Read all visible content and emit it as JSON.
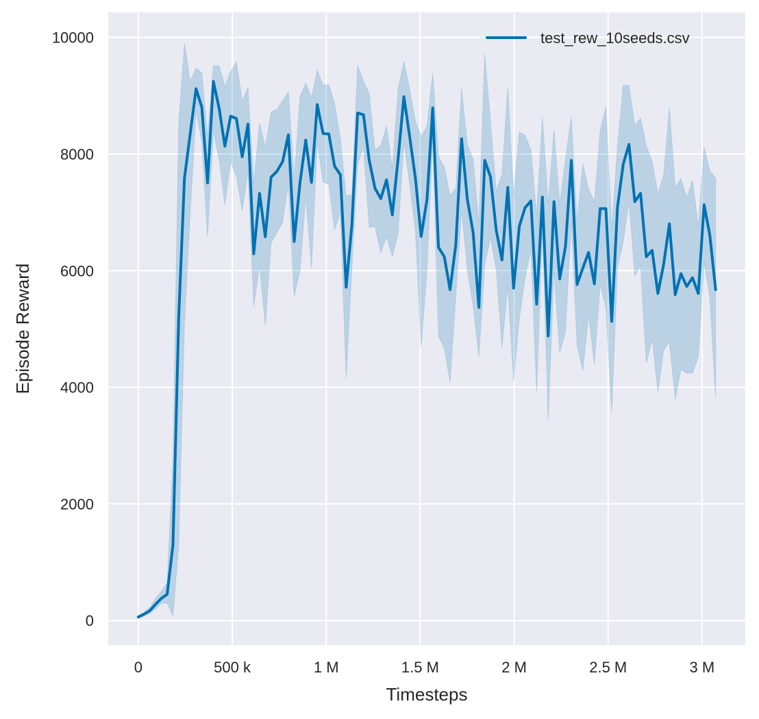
{
  "chart_data": {
    "type": "line",
    "title": "",
    "xlabel": "Timesteps",
    "ylabel": "Episode Reward",
    "xlim": [
      -160000,
      3230000
    ],
    "ylim": [
      -420,
      10430
    ],
    "grid": true,
    "legend": "top-right",
    "background": "#eaeaf2",
    "line_color": "#0072b2",
    "band_color": "#0072b2",
    "xticks": [
      0,
      500000,
      1000000,
      1500000,
      2000000,
      2500000,
      3000000
    ],
    "xtick_labels": [
      "0",
      "500 k",
      "1 M",
      "1.5 M",
      "2 M",
      "2.5 M",
      "3 M"
    ],
    "yticks": [
      0,
      2000,
      4000,
      6000,
      8000,
      10000
    ],
    "ytick_labels": [
      "0",
      "2000",
      "4000",
      "6000",
      "8000",
      "10000"
    ],
    "series": [
      {
        "name": "test_rew_10seeds.csv",
        "x": [
          0,
          30720,
          61440,
          92160,
          122880,
          153600,
          184320,
          215040,
          245760,
          276480,
          307200,
          337920,
          368640,
          399360,
          430080,
          460800,
          491520,
          522240,
          552960,
          583680,
          614400,
          645120,
          675840,
          706560,
          737280,
          768000,
          798720,
          829440,
          860160,
          890880,
          921600,
          952320,
          983040,
          1013760,
          1044480,
          1075200,
          1105920,
          1136640,
          1167360,
          1198080,
          1228800,
          1259520,
          1290240,
          1320960,
          1351680,
          1382400,
          1413120,
          1443840,
          1474560,
          1505280,
          1536000,
          1566720,
          1597440,
          1628160,
          1658880,
          1689600,
          1720320,
          1751040,
          1781760,
          1812480,
          1843200,
          1873920,
          1904640,
          1935360,
          1966080,
          1996800,
          2027520,
          2058240,
          2088960,
          2119680,
          2150400,
          2181120,
          2211840,
          2242560,
          2273280,
          2304000,
          2334720,
          2365440,
          2396160,
          2426880,
          2457600,
          2488320,
          2519040,
          2549760,
          2580480,
          2611200,
          2641920,
          2672640,
          2703360,
          2734080,
          2764800,
          2795520,
          2826240,
          2856960,
          2887680,
          2918400,
          2949120,
          2979840,
          3010560,
          3041280,
          3072000
        ],
        "mean": [
          60,
          110,
          170,
          280,
          380,
          450,
          1300,
          5200,
          7590,
          8350,
          9120,
          8805,
          7505,
          9245,
          8784,
          8134,
          8650,
          8608,
          7954,
          8512,
          6289,
          7325,
          6583,
          7602,
          7702,
          7870,
          8331,
          6499,
          7505,
          8239,
          7514,
          8847,
          8352,
          8344,
          7791,
          7643,
          5717,
          6783,
          8704,
          8674,
          7891,
          7413,
          7235,
          7557,
          6957,
          7913,
          8983,
          8304,
          7587,
          6587,
          7217,
          8791,
          6400,
          6239,
          5674,
          6443,
          8261,
          7217,
          6652,
          5370,
          7891,
          7609,
          6696,
          6183,
          7426,
          5700,
          6761,
          7080,
          7196,
          5426,
          7261,
          4878,
          7183,
          5857,
          6413,
          7891,
          5761,
          6043,
          6313,
          5774,
          7065,
          7065,
          5130,
          7087,
          7826,
          8165,
          7183,
          7326,
          6239,
          6348,
          5609,
          6109,
          6804,
          5587,
          5948,
          5730,
          5878,
          5609,
          7130,
          6609,
          5674
        ],
        "upper": [
          80,
          140,
          230,
          380,
          500,
          650,
          2800,
          8550,
          9900,
          9245,
          9476,
          9392,
          8300,
          9518,
          9518,
          9161,
          9413,
          9581,
          8910,
          9140,
          7484,
          8532,
          8113,
          8721,
          8763,
          8910,
          9069,
          7568,
          8985,
          9212,
          8973,
          9434,
          9182,
          9191,
          8870,
          8261,
          7283,
          7304,
          9522,
          9239,
          9035,
          8065,
          8152,
          8478,
          7739,
          9109,
          9587,
          9109,
          8565,
          8304,
          8478,
          9391,
          7957,
          7783,
          7283,
          7413,
          9130,
          8152,
          7913,
          6800,
          9717,
          8565,
          7370,
          7652,
          9130,
          7304,
          8370,
          8326,
          8074,
          6970,
          8636,
          7143,
          8420,
          7143,
          7922,
          8636,
          6840,
          7835,
          7403,
          7186,
          8398,
          8810,
          6710,
          8139,
          9177,
          9177,
          8485,
          8615,
          8139,
          7879,
          7316,
          7641,
          8797,
          7424,
          7584,
          7251,
          7554,
          6753,
          8117,
          7714,
          7584
        ],
        "lower": [
          40,
          80,
          120,
          200,
          300,
          300,
          80,
          1300,
          5100,
          7000,
          8750,
          8200,
          6583,
          8400,
          7900,
          7128,
          7870,
          7610,
          7023,
          7700,
          5388,
          6101,
          5052,
          6478,
          6646,
          6834,
          7484,
          5556,
          5996,
          7275,
          6038,
          8218,
          7518,
          7484,
          6696,
          7000,
          4152,
          6043,
          7826,
          8109,
          6739,
          6761,
          6304,
          6587,
          6239,
          6630,
          8217,
          7478,
          6696,
          4696,
          6000,
          8283,
          4870,
          4674,
          4087,
          5565,
          7043,
          6000,
          5391,
          4522,
          6087,
          6565,
          6022,
          4674,
          5739,
          4087,
          5174,
          5870,
          6364,
          3918,
          6710,
          3442,
          5996,
          4589,
          4957,
          6840,
          4719,
          4286,
          5238,
          4394,
          5758,
          5368,
          3571,
          6061,
          6494,
          7186,
          5909,
          6082,
          4416,
          4827,
          3918,
          4632,
          4784,
          3788,
          4307,
          4242,
          4242,
          4524,
          6147,
          5541,
          3810
        ]
      }
    ]
  }
}
